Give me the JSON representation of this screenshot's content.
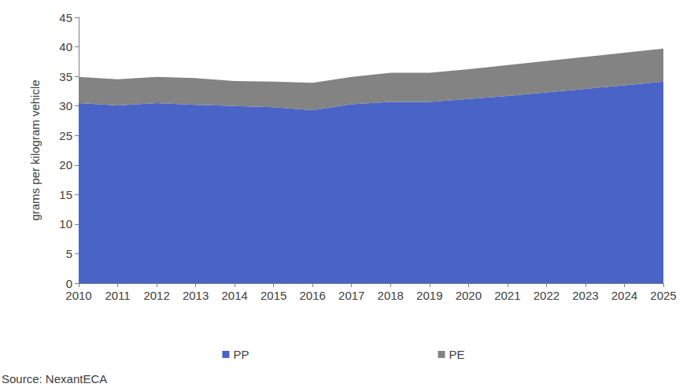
{
  "chart_data": {
    "type": "area",
    "y_label": "grams per kilogram vehicle",
    "source": "Source: NexantECA",
    "categories": [
      "2010",
      "2011",
      "2012",
      "2013",
      "2014",
      "2015",
      "2016",
      "2017",
      "2018",
      "2019",
      "2020",
      "2021",
      "2022",
      "2023",
      "2024",
      "2025"
    ],
    "series": [
      {
        "name": "PP",
        "color": "#4963c7",
        "values": [
          30.5,
          30.1,
          30.5,
          30.2,
          30.0,
          29.8,
          29.3,
          30.3,
          30.7,
          30.7,
          31.2,
          31.7,
          32.3,
          32.9,
          33.5,
          34.1
        ]
      },
      {
        "name": "PE",
        "color": "#838383",
        "values": [
          4.4,
          4.4,
          4.4,
          4.5,
          4.2,
          4.3,
          4.6,
          4.6,
          4.9,
          4.9,
          5.0,
          5.2,
          5.3,
          5.4,
          5.5,
          5.6
        ]
      }
    ],
    "stacked": true,
    "ylim": [
      0,
      45
    ],
    "yticks": [
      0,
      5,
      10,
      15,
      20,
      25,
      30,
      35,
      40,
      45
    ],
    "grid": false,
    "legend": "bottom"
  }
}
